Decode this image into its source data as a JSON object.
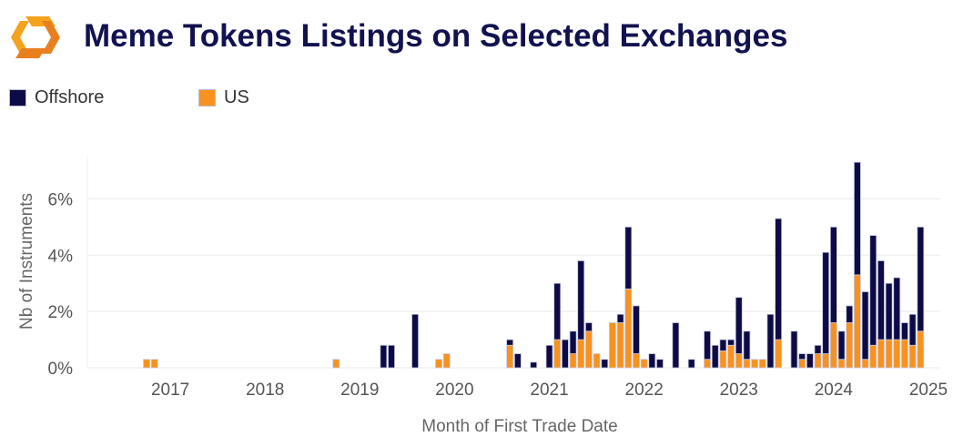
{
  "header": {
    "title": "Meme Tokens Listings on Selected Exchanges"
  },
  "colors": {
    "offshore": "#0d0b45",
    "us": "#f8921e",
    "logo_orange": "#f5a21f",
    "logo_deep": "#e9801e",
    "title": "#121250"
  },
  "legend": {
    "items": [
      {
        "name": "Offshore",
        "color": "#0d0b45"
      },
      {
        "name": "US",
        "color": "#f8921e"
      }
    ]
  },
  "chart_data": {
    "type": "bar",
    "stacked": true,
    "title": "Meme Tokens Listings on Selected Exchanges",
    "xlabel": "Month of First Trade Date",
    "ylabel": "Nb of Instruments",
    "x_unit": "month",
    "x_range": [
      "2016-03",
      "2025-03"
    ],
    "ylim": [
      0,
      7.5
    ],
    "y_ticks": [
      0,
      2,
      4,
      6
    ],
    "y_tick_labels": [
      "0%",
      "2%",
      "4%",
      "6%"
    ],
    "x_tick_labels": [
      "2017",
      "2018",
      "2019",
      "2020",
      "2021",
      "2022",
      "2023",
      "2024",
      "2025"
    ],
    "x_tick_months": [
      "2017-01",
      "2018-01",
      "2019-01",
      "2020-01",
      "2021-01",
      "2022-01",
      "2023-01",
      "2024-01",
      "2025-01"
    ],
    "grid": true,
    "legend_position": "top-left",
    "series": [
      {
        "name": "US",
        "color": "#f8921e",
        "points": [
          [
            "2016-10",
            0.3
          ],
          [
            "2016-11",
            0.3
          ],
          [
            "2018-10",
            0.3
          ],
          [
            "2019-11",
            0.3
          ],
          [
            "2019-12",
            0.5
          ],
          [
            "2020-08",
            0.8
          ],
          [
            "2021-02",
            1.0
          ],
          [
            "2021-04",
            0.5
          ],
          [
            "2021-05",
            1.0
          ],
          [
            "2021-06",
            1.3
          ],
          [
            "2021-07",
            0.5
          ],
          [
            "2021-09",
            1.6
          ],
          [
            "2021-10",
            1.6
          ],
          [
            "2021-11",
            2.8
          ],
          [
            "2021-12",
            0.5
          ],
          [
            "2022-01",
            0.3
          ],
          [
            "2022-09",
            0.3
          ],
          [
            "2022-11",
            0.6
          ],
          [
            "2022-12",
            0.8
          ],
          [
            "2023-01",
            0.5
          ],
          [
            "2023-02",
            0.3
          ],
          [
            "2023-03",
            0.3
          ],
          [
            "2023-04",
            0.3
          ],
          [
            "2023-06",
            1.0
          ],
          [
            "2023-09",
            0.3
          ],
          [
            "2023-11",
            0.5
          ],
          [
            "2023-12",
            0.5
          ],
          [
            "2024-01",
            1.6
          ],
          [
            "2024-02",
            0.3
          ],
          [
            "2024-03",
            1.6
          ],
          [
            "2024-04",
            3.3
          ],
          [
            "2024-05",
            0.3
          ],
          [
            "2024-06",
            0.8
          ],
          [
            "2024-07",
            1.0
          ],
          [
            "2024-08",
            1.0
          ],
          [
            "2024-09",
            1.0
          ],
          [
            "2024-10",
            1.0
          ],
          [
            "2024-11",
            0.8
          ],
          [
            "2024-12",
            1.3
          ]
        ]
      },
      {
        "name": "Offshore",
        "color": "#0d0b45",
        "points": [
          [
            "2019-04",
            0.8
          ],
          [
            "2019-05",
            0.8
          ],
          [
            "2019-08",
            1.9
          ],
          [
            "2020-08",
            0.2
          ],
          [
            "2020-09",
            0.5
          ],
          [
            "2020-11",
            0.2
          ],
          [
            "2021-01",
            0.8
          ],
          [
            "2021-02",
            2.0
          ],
          [
            "2021-03",
            1.0
          ],
          [
            "2021-04",
            0.8
          ],
          [
            "2021-05",
            2.8
          ],
          [
            "2021-06",
            0.3
          ],
          [
            "2021-08",
            0.3
          ],
          [
            "2021-10",
            0.3
          ],
          [
            "2021-11",
            2.2
          ],
          [
            "2021-12",
            1.7
          ],
          [
            "2022-02",
            0.5
          ],
          [
            "2022-03",
            0.3
          ],
          [
            "2022-05",
            1.6
          ],
          [
            "2022-07",
            0.3
          ],
          [
            "2022-09",
            1.0
          ],
          [
            "2022-10",
            0.8
          ],
          [
            "2022-11",
            0.4
          ],
          [
            "2022-12",
            0.2
          ],
          [
            "2023-01",
            2.0
          ],
          [
            "2023-02",
            1.0
          ],
          [
            "2023-05",
            1.9
          ],
          [
            "2023-06",
            4.3
          ],
          [
            "2023-08",
            1.3
          ],
          [
            "2023-09",
            0.2
          ],
          [
            "2023-10",
            0.5
          ],
          [
            "2023-11",
            0.3
          ],
          [
            "2023-12",
            3.6
          ],
          [
            "2024-01",
            3.4
          ],
          [
            "2024-02",
            1.0
          ],
          [
            "2024-03",
            0.6
          ],
          [
            "2024-04",
            4.0
          ],
          [
            "2024-05",
            2.4
          ],
          [
            "2024-06",
            3.9
          ],
          [
            "2024-07",
            2.8
          ],
          [
            "2024-08",
            2.0
          ],
          [
            "2024-09",
            2.2
          ],
          [
            "2024-10",
            0.6
          ],
          [
            "2024-11",
            1.1
          ],
          [
            "2024-12",
            3.7
          ]
        ]
      }
    ]
  }
}
